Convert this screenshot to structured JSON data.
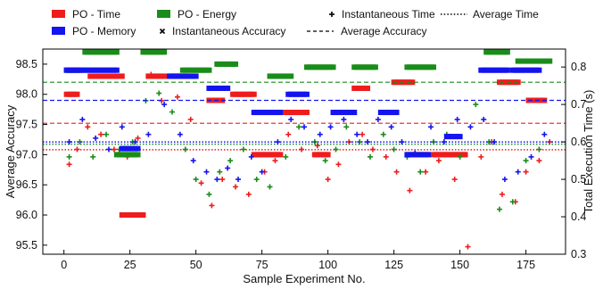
{
  "chart_data": {
    "type": "scatter",
    "xlabel": "Sample Experiment No.",
    "ylabel_left": "Average Accuracy",
    "ylabel_right": "Total Execution Time (s)",
    "xlim": [
      -8,
      190
    ],
    "ylim_left": [
      95.35,
      98.75
    ],
    "ylim_right": [
      0.3,
      0.848
    ],
    "xticks": [
      0,
      25,
      50,
      75,
      100,
      125,
      150,
      175
    ],
    "yticks_left": [
      95.5,
      96.0,
      96.5,
      97.0,
      97.5,
      98.0,
      98.5
    ],
    "yticks_right": [
      0.3,
      0.4,
      0.5,
      0.6,
      0.7,
      0.8
    ],
    "ytick_labels_left": [
      "95.5",
      "96.0",
      "96.5",
      "97.0",
      "97.5",
      "98.0",
      "98.5"
    ],
    "ytick_labels_right": [
      "0.3",
      "0.4",
      "0.5",
      "0.6",
      "0.7",
      "0.8"
    ],
    "grid": false,
    "legend_position": "top, above plot",
    "legend": [
      {
        "label": "PO - Time",
        "kind": "patch",
        "color": "#ee1c1c"
      },
      {
        "label": "PO - Energy",
        "kind": "patch",
        "color": "#1a8c1a"
      },
      {
        "label": "Instantaneous Time",
        "kind": "plus",
        "color": "#000000"
      },
      {
        "label": "Average Time",
        "kind": "dotted",
        "color": "#000000"
      },
      {
        "label": "PO - Memory",
        "kind": "patch",
        "color": "#1414ee"
      },
      {
        "label": "Instantaneous Accuracy",
        "kind": "x",
        "color": "#000000"
      },
      {
        "label": "Average Accuracy",
        "kind": "dashed",
        "color": "#000000"
      }
    ],
    "series": [
      {
        "name": "PO - Time",
        "color": "#ee1c1c",
        "average_accuracy": 97.52,
        "average_time": 0.579,
        "accuracy_levels": [
          {
            "x": [
              1,
              5
            ],
            "y": 98.0
          },
          {
            "x": [
              10,
              22
            ],
            "y": 98.3
          },
          {
            "x": [
              22,
              30
            ],
            "y": 96.0
          },
          {
            "x": [
              32,
              38
            ],
            "y": 98.3
          },
          {
            "x": [
              40,
              47
            ],
            "y": 98.3
          },
          {
            "x": [
              55,
              60
            ],
            "y": 97.9
          },
          {
            "x": [
              64,
              72
            ],
            "y": 98.0
          },
          {
            "x": [
              72,
              82
            ],
            "y": 97.0
          },
          {
            "x": [
              84,
              92
            ],
            "y": 97.7
          },
          {
            "x": [
              95,
              100
            ],
            "y": 97.0
          },
          {
            "x": [
              110,
              115
            ],
            "y": 98.1
          },
          {
            "x": [
              125,
              132
            ],
            "y": 98.2
          },
          {
            "x": [
              140,
              152
            ],
            "y": 97.0
          },
          {
            "x": [
              165,
              172
            ],
            "y": 98.2
          },
          {
            "x": [
              176,
              182
            ],
            "y": 97.9
          }
        ],
        "time_points": [
          [
            2,
            0.54
          ],
          [
            5,
            0.58
          ],
          [
            9,
            0.64
          ],
          [
            14,
            0.62
          ],
          [
            19,
            0.58
          ],
          [
            24,
            0.56
          ],
          [
            28,
            0.61
          ],
          [
            33,
            0.78
          ],
          [
            37,
            0.71
          ],
          [
            43,
            0.72
          ],
          [
            48,
            0.66
          ],
          [
            52,
            0.49
          ],
          [
            56,
            0.43
          ],
          [
            60,
            0.5
          ],
          [
            65,
            0.48
          ],
          [
            70,
            0.46
          ],
          [
            76,
            0.52
          ],
          [
            80,
            0.55
          ],
          [
            85,
            0.62
          ],
          [
            90,
            0.58
          ],
          [
            96,
            0.59
          ],
          [
            100,
            0.5
          ],
          [
            104,
            0.54
          ],
          [
            108,
            0.6
          ],
          [
            113,
            0.62
          ],
          [
            117,
            0.58
          ],
          [
            122,
            0.56
          ],
          [
            126,
            0.52
          ],
          [
            131,
            0.47
          ],
          [
            137,
            0.52
          ],
          [
            142,
            0.55
          ],
          [
            148,
            0.5
          ],
          [
            153,
            0.32
          ],
          [
            158,
            0.56
          ],
          [
            162,
            0.6
          ],
          [
            166,
            0.46
          ],
          [
            171,
            0.44
          ],
          [
            175,
            0.52
          ],
          [
            180,
            0.55
          ],
          [
            184,
            0.6
          ]
        ]
      },
      {
        "name": "PO - Energy",
        "color": "#1a8c1a",
        "average_accuracy": 98.2,
        "average_time": 0.594,
        "accuracy_levels": [
          {
            "x": [
              1,
              6
            ],
            "y": 98.4
          },
          {
            "x": [
              8,
              20
            ],
            "y": 98.7
          },
          {
            "x": [
              20,
              28
            ],
            "y": 97.0
          },
          {
            "x": [
              30,
              38
            ],
            "y": 98.7
          },
          {
            "x": [
              45,
              55
            ],
            "y": 98.4
          },
          {
            "x": [
              58,
              65
            ],
            "y": 98.5
          },
          {
            "x": [
              78,
              86
            ],
            "y": 98.3
          },
          {
            "x": [
              92,
              102
            ],
            "y": 98.45
          },
          {
            "x": [
              110,
              118
            ],
            "y": 98.45
          },
          {
            "x": [
              130,
              140
            ],
            "y": 98.45
          },
          {
            "x": [
              160,
              168
            ],
            "y": 98.7
          },
          {
            "x": [
              172,
              184
            ],
            "y": 98.55
          }
        ],
        "time_points": [
          [
            2,
            0.56
          ],
          [
            6,
            0.6
          ],
          [
            11,
            0.56
          ],
          [
            16,
            0.62
          ],
          [
            21,
            0.58
          ],
          [
            26,
            0.6
          ],
          [
            31,
            0.71
          ],
          [
            36,
            0.73
          ],
          [
            41,
            0.68
          ],
          [
            46,
            0.58
          ],
          [
            50,
            0.5
          ],
          [
            55,
            0.46
          ],
          [
            59,
            0.52
          ],
          [
            63,
            0.55
          ],
          [
            68,
            0.58
          ],
          [
            73,
            0.5
          ],
          [
            78,
            0.48
          ],
          [
            84,
            0.56
          ],
          [
            89,
            0.64
          ],
          [
            95,
            0.6
          ],
          [
            99,
            0.55
          ],
          [
            103,
            0.58
          ],
          [
            107,
            0.64
          ],
          [
            112,
            0.6
          ],
          [
            116,
            0.56
          ],
          [
            121,
            0.62
          ],
          [
            125,
            0.58
          ],
          [
            130,
            0.56
          ],
          [
            135,
            0.52
          ],
          [
            140,
            0.6
          ],
          [
            145,
            0.62
          ],
          [
            150,
            0.56
          ],
          [
            156,
            0.7
          ],
          [
            161,
            0.6
          ],
          [
            165,
            0.42
          ],
          [
            170,
            0.44
          ],
          [
            175,
            0.55
          ],
          [
            180,
            0.58
          ]
        ]
      },
      {
        "name": "PO - Memory",
        "color": "#1414ee",
        "average_accuracy": 97.9,
        "average_time": 0.6,
        "accuracy_levels": [
          {
            "x": [
              1,
              20
            ],
            "y": 98.4
          },
          {
            "x": [
              22,
              28
            ],
            "y": 97.1
          },
          {
            "x": [
              40,
              50
            ],
            "y": 98.3
          },
          {
            "x": [
              55,
              62
            ],
            "y": 98.1
          },
          {
            "x": [
              72,
              82
            ],
            "y": 97.7
          },
          {
            "x": [
              85,
              92
            ],
            "y": 98.0
          },
          {
            "x": [
              102,
              110
            ],
            "y": 97.7
          },
          {
            "x": [
              120,
              126
            ],
            "y": 97.7
          },
          {
            "x": [
              130,
              138
            ],
            "y": 97.0
          },
          {
            "x": [
              145,
              150
            ],
            "y": 97.3
          },
          {
            "x": [
              158,
              168
            ],
            "y": 98.4
          },
          {
            "x": [
              170,
              180
            ],
            "y": 98.4
          }
        ],
        "time_points": [
          [
            2,
            0.6
          ],
          [
            7,
            0.66
          ],
          [
            12,
            0.61
          ],
          [
            17,
            0.58
          ],
          [
            22,
            0.64
          ],
          [
            27,
            0.6
          ],
          [
            32,
            0.62
          ],
          [
            38,
            0.7
          ],
          [
            44,
            0.62
          ],
          [
            49,
            0.55
          ],
          [
            54,
            0.52
          ],
          [
            58,
            0.5
          ],
          [
            62,
            0.53
          ],
          [
            66,
            0.5
          ],
          [
            71,
            0.56
          ],
          [
            75,
            0.52
          ],
          [
            81,
            0.6
          ],
          [
            86,
            0.66
          ],
          [
            91,
            0.64
          ],
          [
            97,
            0.62
          ],
          [
            101,
            0.64
          ],
          [
            106,
            0.66
          ],
          [
            111,
            0.62
          ],
          [
            115,
            0.6
          ],
          [
            119,
            0.66
          ],
          [
            124,
            0.64
          ],
          [
            128,
            0.6
          ],
          [
            133,
            0.57
          ],
          [
            139,
            0.64
          ],
          [
            144,
            0.6
          ],
          [
            149,
            0.66
          ],
          [
            154,
            0.64
          ],
          [
            159,
            0.66
          ],
          [
            163,
            0.6
          ],
          [
            167,
            0.5
          ],
          [
            172,
            0.52
          ],
          [
            177,
            0.56
          ],
          [
            182,
            0.62
          ]
        ]
      }
    ]
  }
}
